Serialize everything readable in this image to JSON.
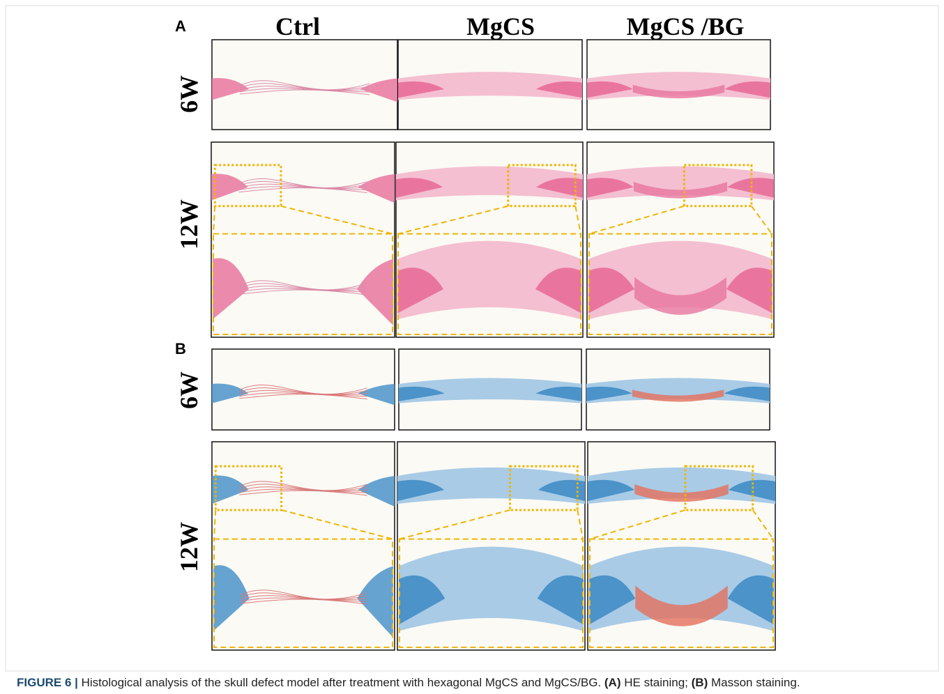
{
  "columns": [
    "Ctrl",
    "MgCS",
    "MgCS /BG"
  ],
  "panels": [
    {
      "label": "A",
      "rows": [
        "6W",
        "12W"
      ]
    },
    {
      "label": "B",
      "rows": [
        "6W",
        "12W"
      ]
    }
  ],
  "caption": {
    "figure": "FIGURE 6 |",
    "text": "Histological analysis of the skull defect model after treatment with hexagonal MgCS and MgCS/BG.",
    "a": "(A)",
    "a_text": "HE staining;",
    "b": "(B)",
    "b_text": "Masson staining."
  }
}
